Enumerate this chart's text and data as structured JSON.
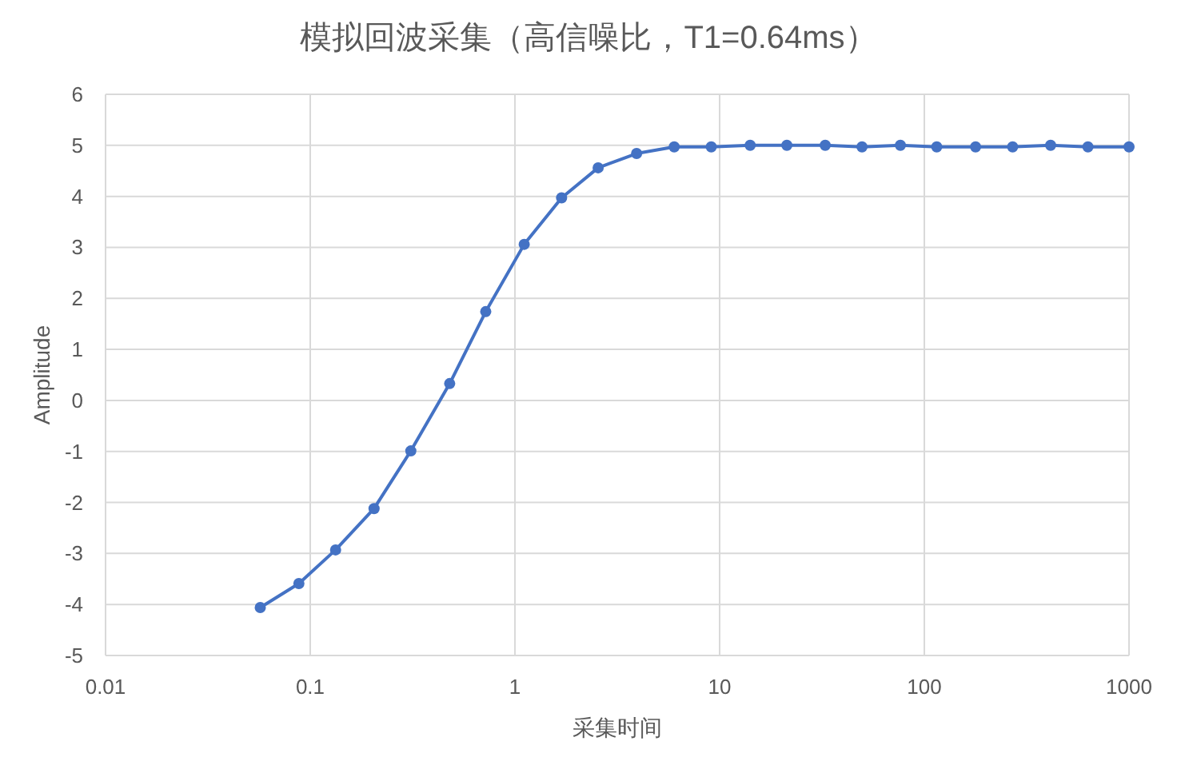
{
  "chart_data": {
    "type": "line",
    "title": "模拟回波采集（高信噪比，T1=0.64ms）",
    "xlabel": "采集时间",
    "ylabel": "Amplitude",
    "log": "x",
    "grid": true,
    "marker": "circle",
    "line_style": "solid",
    "xlim": [
      0.01,
      1000
    ],
    "xticks": [
      0.01,
      0.1,
      1,
      10,
      100,
      1000
    ],
    "ylim": [
      -5,
      6
    ],
    "yticks": [
      -5,
      -4,
      -3,
      -2,
      -1,
      0,
      1,
      2,
      3,
      4,
      5,
      6
    ],
    "series": [
      {
        "color": "#4472c4",
        "x": [
          0.057,
          0.088,
          0.133,
          0.205,
          0.31,
          0.48,
          0.72,
          1.11,
          1.69,
          2.55,
          3.93,
          6.0,
          9.1,
          14.1,
          21.3,
          32.8,
          49.6,
          76.4,
          115,
          178,
          270,
          414,
          630,
          1000
        ],
        "values": [
          -4.06,
          -3.59,
          -2.93,
          -2.12,
          -0.99,
          0.33,
          1.74,
          3.06,
          3.97,
          4.56,
          4.84,
          4.97,
          4.97,
          5.0,
          5.0,
          5.0,
          4.97,
          5.0,
          4.97,
          4.97,
          4.97,
          5.0,
          4.97,
          4.97
        ]
      }
    ]
  }
}
